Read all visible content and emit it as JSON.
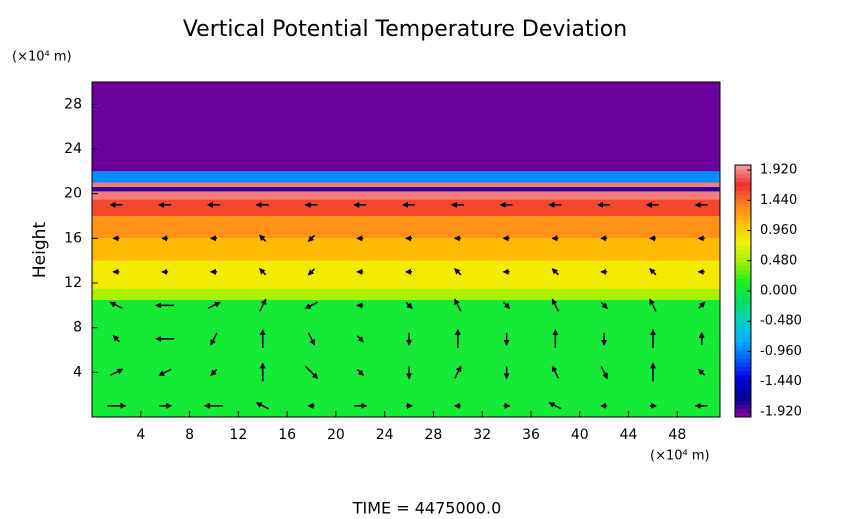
{
  "chart_data": {
    "type": "heatmap",
    "title": "Vertical Potential Temperature Deviation",
    "y_unit": "(×10⁴ m)",
    "x_unit": "(×10⁴ m)",
    "ylabel": "Height",
    "footer": "TIME = 4475000.0",
    "xlim": [
      0,
      51.5
    ],
    "ylim": [
      0,
      30
    ],
    "xticks": [
      4,
      8,
      12,
      16,
      20,
      24,
      28,
      32,
      36,
      40,
      44,
      48
    ],
    "yticks": [
      4,
      8,
      12,
      16,
      20,
      24,
      28
    ],
    "y_edges": [
      0,
      10.5,
      11.5,
      14,
      16,
      18,
      19.5,
      20.2,
      20.6,
      21,
      22,
      30
    ],
    "values": [
      0.05,
      0.5,
      0.8,
      1.1,
      1.3,
      1.6,
      1.9,
      -1.8,
      1.9,
      -0.9,
      -1.92
    ],
    "clim": [
      -2,
      2
    ],
    "colorscale": [
      "#9000a0",
      "#000090",
      "#0000e0",
      "#0060ff",
      "#00b0ff",
      "#00d0c0",
      "#00e060",
      "#20f020",
      "#a0f000",
      "#f0f000",
      "#ffc000",
      "#ff8020",
      "#f03030",
      "#f7a0a0"
    ],
    "cticks": [
      {
        "value": 1.92,
        "label": "1.920"
      },
      {
        "value": 1.44,
        "label": "1.440"
      },
      {
        "value": 0.96,
        "label": "0.960"
      },
      {
        "value": 0.48,
        "label": "0.480"
      },
      {
        "value": 0,
        "label": "0.000"
      },
      {
        "value": -0.48,
        "label": "-0.480"
      },
      {
        "value": -0.96,
        "label": "-0.960"
      },
      {
        "value": -1.44,
        "label": "-1.440"
      },
      {
        "value": -1.92,
        "label": "-1.920"
      }
    ],
    "vectors": {
      "color": "#000000",
      "x": [
        2,
        6,
        10,
        14,
        18,
        22,
        26,
        30,
        34,
        38,
        42,
        46,
        50
      ],
      "y": [
        1,
        4,
        7,
        10,
        13,
        16,
        19
      ],
      "u": [
        [
          3,
          2,
          -3,
          -2,
          -1,
          2,
          1,
          -1,
          1,
          -2,
          -1,
          1,
          -2
        ],
        [
          2,
          -2,
          -1,
          0,
          2,
          1,
          0,
          1,
          0,
          -1,
          1,
          0,
          -1
        ],
        [
          -1,
          -3,
          -1,
          0,
          1,
          1,
          0,
          0,
          0,
          0,
          0,
          0,
          0
        ],
        [
          -2,
          -3,
          2,
          1,
          -2,
          -1,
          1,
          -1,
          1,
          -1,
          1,
          -1,
          1
        ],
        [
          -1,
          -1,
          -1,
          -1,
          -1,
          -1,
          -1,
          -1,
          -1,
          -1,
          -1,
          -1,
          -1
        ],
        [
          -1,
          -1,
          -1,
          -1,
          -1,
          -1,
          -1,
          -1,
          -1,
          -1,
          -1,
          -1,
          -1
        ],
        [
          -2,
          -2,
          -2,
          -2,
          -2,
          -2,
          -2,
          -2,
          -2,
          -2,
          -2,
          -2,
          -2
        ]
      ],
      "v": [
        [
          0,
          0,
          0,
          1,
          0,
          0,
          0,
          0,
          0,
          1,
          0,
          0,
          0
        ],
        [
          1,
          -1,
          -1,
          3,
          -2,
          -1,
          -2,
          2,
          -2,
          2,
          -2,
          3,
          1
        ],
        [
          1,
          0,
          -2,
          3,
          -2,
          -1,
          -2,
          3,
          -2,
          3,
          -2,
          3,
          2
        ],
        [
          1,
          0,
          1,
          2,
          -1,
          0,
          -1,
          2,
          -1,
          2,
          -1,
          2,
          1
        ],
        [
          0,
          0,
          0,
          1,
          -1,
          0,
          0,
          1,
          0,
          1,
          0,
          1,
          0
        ],
        [
          0,
          0,
          0,
          1,
          -1,
          0,
          0,
          0,
          0,
          0,
          0,
          0,
          0
        ],
        [
          0,
          0,
          0,
          0,
          0,
          0,
          0,
          0,
          0,
          0,
          0,
          0,
          0
        ]
      ]
    }
  }
}
